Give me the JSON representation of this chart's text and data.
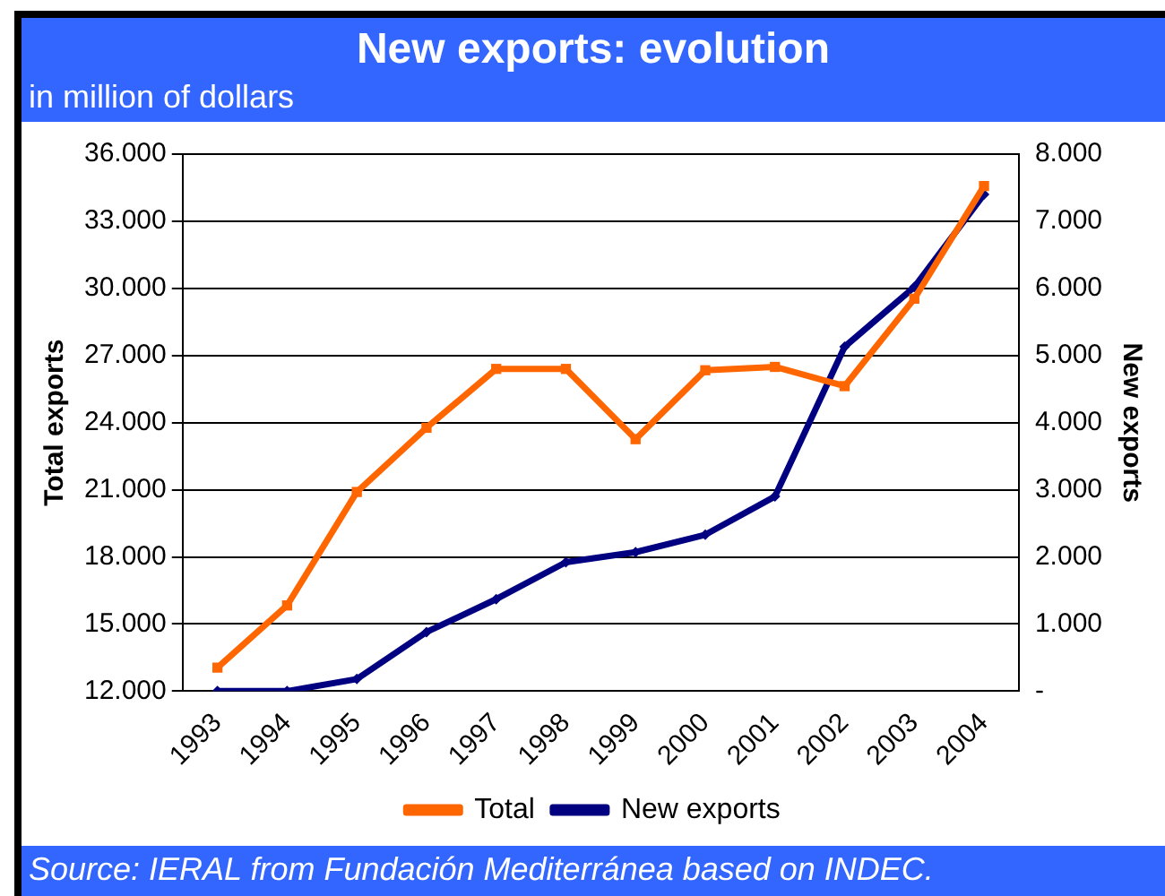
{
  "chart_data": {
    "type": "line",
    "title": "New exports: evolution",
    "subtitle": "in million of dollars",
    "ylabel": "Total exports",
    "y2label": "New exports",
    "categories": [
      "1993",
      "1994",
      "1995",
      "1996",
      "1997",
      "1998",
      "1999",
      "2000",
      "2001",
      "2002",
      "2003",
      "2004"
    ],
    "series": [
      {
        "name": "Total",
        "color": "#ff6600",
        "marker": "square",
        "values": [
          13050,
          15830,
          20900,
          23770,
          26400,
          26400,
          23260,
          26340,
          26490,
          25630,
          29540,
          34570
        ]
      },
      {
        "name": "New exports",
        "color": "#000080",
        "marker": "diamond",
        "axis": "y2",
        "values": [
          0,
          0,
          180,
          880,
          1370,
          1920,
          2070,
          2330,
          2900,
          5130,
          6020,
          7400
        ]
      }
    ],
    "ylim": [
      12000,
      36000
    ],
    "yticks": [
      {
        "value": 12000,
        "label": "12.000"
      },
      {
        "value": 15000,
        "label": "15.000"
      },
      {
        "value": 18000,
        "label": "18.000"
      },
      {
        "value": 21000,
        "label": "21.000"
      },
      {
        "value": 24000,
        "label": "24.000"
      },
      {
        "value": 27000,
        "label": "27.000"
      },
      {
        "value": 30000,
        "label": "30.000"
      },
      {
        "value": 33000,
        "label": "33.000"
      },
      {
        "value": 36000,
        "label": "36.000"
      }
    ],
    "y2lim": [
      0,
      8000
    ],
    "y2ticks": [
      {
        "value": 0,
        "label": "-"
      },
      {
        "value": 1000,
        "label": "1.000"
      },
      {
        "value": 2000,
        "label": "2.000"
      },
      {
        "value": 3000,
        "label": "3.000"
      },
      {
        "value": 4000,
        "label": "4.000"
      },
      {
        "value": 5000,
        "label": "5.000"
      },
      {
        "value": 6000,
        "label": "6.000"
      },
      {
        "value": 7000,
        "label": "7.000"
      },
      {
        "value": 8000,
        "label": "8.000"
      }
    ],
    "grid": "y",
    "legend": "bottom",
    "annotations": [
      "Source: IERAL from Fundación Mediterránea based on INDEC."
    ]
  }
}
